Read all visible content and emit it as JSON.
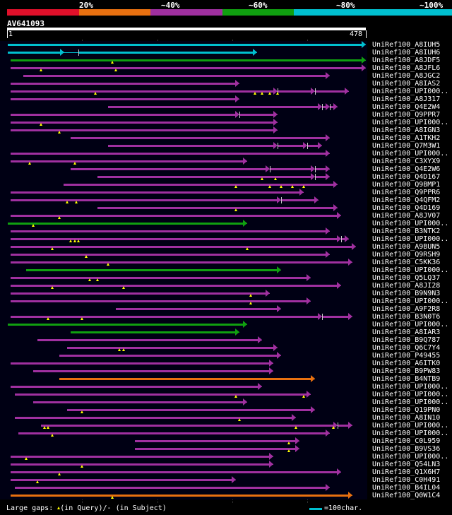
{
  "chart_data": {
    "type": "alignment",
    "query": {
      "name": "AV641093",
      "start": "1",
      "end": "478",
      "length": 478
    },
    "identity_scale": [
      {
        "label": "20%",
        "color": "#e0102a"
      },
      {
        "label": "~40%",
        "color": "#e87010"
      },
      {
        "label": "~60%",
        "color": "#a030a0"
      },
      {
        "label": "~80%",
        "color": "#10a010"
      },
      {
        "label": "~100%",
        "color": "#00c0d0"
      }
    ],
    "gridlines": [
      100,
      200,
      300,
      400
    ],
    "hits": [
      {
        "label": "UniRef100_A8IUH5",
        "color": "#00c0d0",
        "segs": [
          [
            1,
            478
          ]
        ],
        "tris": []
      },
      {
        "label": "UniRef100_A8IUH6",
        "color": "#00c0d0",
        "segs": [
          [
            1,
            76
          ],
          [
            95,
            333
          ]
        ],
        "tris": []
      },
      {
        "label": "UniRef100_A8JDF5",
        "color": "#10a010",
        "segs": [
          [
            5,
            478
          ]
        ],
        "tris": [
          140
        ]
      },
      {
        "label": "UniRef100_A8JFL6",
        "color": "#a030a0",
        "segs": [
          [
            5,
            478
          ]
        ],
        "tris": [
          45,
          145
        ]
      },
      {
        "label": "UniRef100_A8JGC2",
        "color": "#a030a0",
        "segs": [
          [
            22,
            430
          ]
        ],
        "tris": []
      },
      {
        "label": "UniRef100_A8IAS2",
        "color": "#a030a0",
        "segs": [
          [
            5,
            310
          ]
        ],
        "tris": []
      },
      {
        "label": "UniRef100_UPI000..",
        "color": "#a030a0",
        "segs": [
          [
            5,
            360
          ],
          [
            360,
            410
          ],
          [
            410,
            455
          ]
        ],
        "tris": [
          118,
          330,
          340,
          350,
          360
        ]
      },
      {
        "label": "UniRef100_A8J317",
        "color": "#a030a0",
        "segs": [
          [
            5,
            310
          ]
        ],
        "tris": []
      },
      {
        "label": "UniRef100_Q4E2W4",
        "color": "#a030a0",
        "segs": [
          [
            135,
            420
          ],
          [
            420,
            430
          ],
          [
            430,
            440
          ]
        ],
        "tris": []
      },
      {
        "label": "UniRef100_Q9PPR7",
        "color": "#a030a0",
        "segs": [
          [
            5,
            310
          ],
          [
            310,
            360
          ]
        ],
        "tris": []
      },
      {
        "label": "UniRef100_UPI000..",
        "color": "#a030a0",
        "segs": [
          [
            5,
            360
          ]
        ],
        "tris": [
          45
        ]
      },
      {
        "label": "UniRef100_A8IGN3",
        "color": "#a030a0",
        "segs": [
          [
            5,
            360
          ]
        ],
        "tris": [
          70
        ]
      },
      {
        "label": "UniRef100_A1TKH2",
        "color": "#a030a0",
        "segs": [
          [
            85,
            430
          ]
        ],
        "tris": []
      },
      {
        "label": "UniRef100_Q7M3W1",
        "color": "#a030a0",
        "segs": [
          [
            135,
            360
          ],
          [
            360,
            400
          ],
          [
            400,
            420
          ]
        ],
        "tris": []
      },
      {
        "label": "UniRef100_UPI000..",
        "color": "#a030a0",
        "segs": [
          [
            5,
            430
          ]
        ],
        "tris": []
      },
      {
        "label": "UniRef100_C3XYX9",
        "color": "#a030a0",
        "segs": [
          [
            5,
            320
          ]
        ],
        "tris": [
          30,
          90
        ]
      },
      {
        "label": "UniRef100_Q4E2W6",
        "color": "#a030a0",
        "segs": [
          [
            85,
            350
          ],
          [
            350,
            410
          ],
          [
            410,
            430
          ]
        ],
        "tris": []
      },
      {
        "label": "UniRef100_Q4D167",
        "color": "#a030a0",
        "segs": [
          [
            120,
            410
          ],
          [
            410,
            430
          ]
        ],
        "tris": [
          340,
          358
        ]
      },
      {
        "label": "UniRef100_Q9BMP1",
        "color": "#a030a0",
        "segs": [
          [
            75,
            440
          ]
        ],
        "tris": [
          305,
          350,
          365,
          380,
          395
        ]
      },
      {
        "label": "UniRef100_Q9PPR6",
        "color": "#a030a0",
        "segs": [
          [
            5,
            395
          ]
        ],
        "tris": []
      },
      {
        "label": "UniRef100_Q4QFM2",
        "color": "#a030a0",
        "segs": [
          [
            5,
            365
          ],
          [
            365,
            415
          ]
        ],
        "tris": [
          80,
          92
        ]
      },
      {
        "label": "UniRef100_Q4D169",
        "color": "#a030a0",
        "segs": [
          [
            120,
            440
          ]
        ],
        "tris": [
          305
        ]
      },
      {
        "label": "UniRef100_A8JV07",
        "color": "#a030a0",
        "segs": [
          [
            5,
            445
          ]
        ],
        "tris": [
          70
        ]
      },
      {
        "label": "UniRef100_UPI000..",
        "color": "#10a010",
        "segs": [
          [
            1,
            320
          ]
        ],
        "tris": [
          35
        ]
      },
      {
        "label": "UniRef100_B3NTK2",
        "color": "#a030a0",
        "segs": [
          [
            5,
            430
          ]
        ],
        "tris": []
      },
      {
        "label": "UniRef100_UPI000..",
        "color": "#a030a0",
        "segs": [
          [
            5,
            445
          ],
          [
            445,
            455
          ]
        ],
        "tris": [
          85,
          90,
          95
        ]
      },
      {
        "label": "UniRef100_A9BUN5",
        "color": "#a030a0",
        "segs": [
          [
            5,
            465
          ]
        ],
        "tris": [
          60,
          320
        ]
      },
      {
        "label": "UniRef100_Q9RSH9",
        "color": "#a030a0",
        "segs": [
          [
            5,
            430
          ]
        ],
        "tris": [
          105
        ]
      },
      {
        "label": "UniRef100_C5KK36",
        "color": "#a030a0",
        "segs": [
          [
            5,
            460
          ]
        ],
        "tris": [
          135
        ]
      },
      {
        "label": "UniRef100_UPI000..",
        "color": "#10a010",
        "segs": [
          [
            25,
            365
          ]
        ],
        "tris": []
      },
      {
        "label": "UniRef100_Q5LQ37",
        "color": "#a030a0",
        "segs": [
          [
            5,
            405
          ]
        ],
        "tris": [
          110,
          120
        ]
      },
      {
        "label": "UniRef100_A8JI28",
        "color": "#a030a0",
        "segs": [
          [
            5,
            445
          ]
        ],
        "tris": [
          60,
          155
        ]
      },
      {
        "label": "UniRef100_B9N9N3",
        "color": "#a030a0",
        "segs": [
          [
            5,
            350
          ]
        ],
        "tris": [
          325
        ]
      },
      {
        "label": "UniRef100_UPI000..",
        "color": "#a030a0",
        "segs": [
          [
            5,
            405
          ]
        ],
        "tris": [
          325
        ]
      },
      {
        "label": "UniRef100_A9F2R8",
        "color": "#a030a0",
        "segs": [
          [
            145,
            365
          ]
        ],
        "tris": []
      },
      {
        "label": "UniRef100_B3N0T6",
        "color": "#a030a0",
        "segs": [
          [
            5,
            420
          ],
          [
            420,
            460
          ]
        ],
        "tris": [
          55,
          100
        ]
      },
      {
        "label": "UniRef100_UPI000..",
        "color": "#10a010",
        "segs": [
          [
            1,
            320
          ]
        ],
        "tris": []
      },
      {
        "label": "UniRef100_A8IAR3",
        "color": "#10a010",
        "segs": [
          [
            85,
            310
          ]
        ],
        "tris": []
      },
      {
        "label": "UniRef100_B9Q787",
        "color": "#a030a0",
        "segs": [
          [
            40,
            340
          ]
        ],
        "tris": []
      },
      {
        "label": "UniRef100_Q6C7Y4",
        "color": "#a030a0",
        "segs": [
          [
            80,
            360
          ]
        ],
        "tris": [
          150,
          155
        ]
      },
      {
        "label": "UniRef100_P49455",
        "color": "#a030a0",
        "segs": [
          [
            70,
            365
          ]
        ],
        "tris": []
      },
      {
        "label": "UniRef100_A6ITK0",
        "color": "#a030a0",
        "segs": [
          [
            5,
            355
          ]
        ],
        "tris": []
      },
      {
        "label": "UniRef100_B9PW83",
        "color": "#a030a0",
        "segs": [
          [
            35,
            355
          ]
        ],
        "tris": []
      },
      {
        "label": "UniRef100_B4NTB9",
        "color": "#e87010",
        "segs": [
          [
            70,
            410
          ]
        ],
        "tris": []
      },
      {
        "label": "UniRef100_UPI000..",
        "color": "#a030a0",
        "segs": [
          [
            5,
            340
          ]
        ],
        "tris": []
      },
      {
        "label": "UniRef100_UPI000..",
        "color": "#a030a0",
        "segs": [
          [
            10,
            405
          ]
        ],
        "tris": [
          305,
          395
        ]
      },
      {
        "label": "UniRef100_UPI000..",
        "color": "#a030a0",
        "segs": [
          [
            35,
            320
          ]
        ],
        "tris": []
      },
      {
        "label": "UniRef100_Q19PN0",
        "color": "#a030a0",
        "segs": [
          [
            80,
            410
          ]
        ],
        "tris": [
          100
        ]
      },
      {
        "label": "UniRef100_A8IN10",
        "color": "#a030a0",
        "segs": [
          [
            10,
            385
          ]
        ],
        "tris": [
          310
        ]
      },
      {
        "label": "UniRef100_UPI000..",
        "color": "#a030a0",
        "segs": [
          [
            45,
            440
          ],
          [
            440,
            460
          ]
        ],
        "tris": [
          50,
          55,
          385,
          435
        ]
      },
      {
        "label": "UniRef100_UPI000..",
        "color": "#a030a0",
        "segs": [
          [
            15,
            430
          ]
        ],
        "tris": [
          60
        ]
      },
      {
        "label": "UniRef100_C0L959",
        "color": "#a030a0",
        "segs": [
          [
            170,
            390
          ]
        ],
        "tris": [
          375
        ]
      },
      {
        "label": "UniRef100_B9VS36",
        "color": "#a030a0",
        "segs": [
          [
            170,
            390
          ]
        ],
        "tris": [
          375
        ]
      },
      {
        "label": "UniRef100_UPI000..",
        "color": "#a030a0",
        "segs": [
          [
            5,
            355
          ]
        ],
        "tris": [
          25
        ]
      },
      {
        "label": "UniRef100_Q54LN3",
        "color": "#a030a0",
        "segs": [
          [
            5,
            355
          ]
        ],
        "tris": [
          100
        ]
      },
      {
        "label": "UniRef100_Q1X6H7",
        "color": "#a030a0",
        "segs": [
          [
            5,
            445
          ]
        ],
        "tris": [
          70
        ]
      },
      {
        "label": "UniRef100_C0H491",
        "color": "#a030a0",
        "segs": [
          [
            5,
            305
          ]
        ],
        "tris": [
          40
        ]
      },
      {
        "label": "UniRef100_B4IL04",
        "color": "#a030a0",
        "segs": [
          [
            10,
            430
          ]
        ],
        "tris": []
      },
      {
        "label": "UniRef100_Q0W1C4",
        "color": "#e87010",
        "segs": [
          [
            5,
            460
          ]
        ],
        "tris": [
          140
        ]
      }
    ]
  },
  "footer": {
    "gaps_label": "Large gaps:",
    "gaps_query": "(in Query)/",
    "gaps_dash": "-",
    "gaps_subject": "(in Subject)",
    "scale_label": "=100char."
  }
}
